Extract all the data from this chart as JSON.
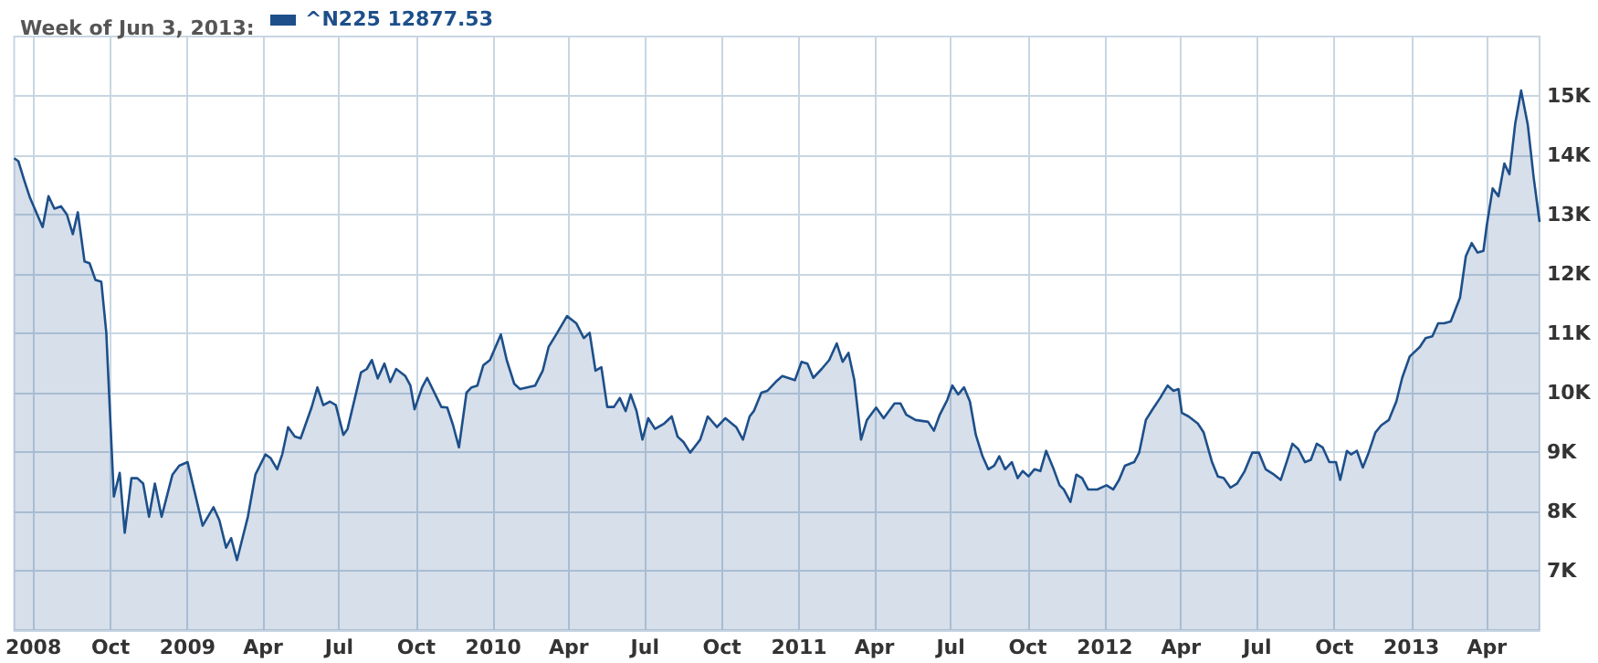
{
  "chart_data": {
    "type": "area",
    "title": "Week of Jun 3, 2013:",
    "legend": "top left",
    "grid": true,
    "marker": "none",
    "line_style": "solid",
    "xlim": [
      "2008-06-08",
      "2013-06-03"
    ],
    "xticks": [
      {
        "value": "2008-07-01",
        "label": "2008"
      },
      {
        "value": "2008-10-01",
        "label": "Oct"
      },
      {
        "value": "2009-01-01",
        "label": "2009"
      },
      {
        "value": "2009-04-01",
        "label": "Apr"
      },
      {
        "value": "2009-07-01",
        "label": "Jul"
      },
      {
        "value": "2009-10-01",
        "label": "Oct"
      },
      {
        "value": "2010-01-01",
        "label": "2010"
      },
      {
        "value": "2010-04-01",
        "label": "Apr"
      },
      {
        "value": "2010-07-01",
        "label": "Jul"
      },
      {
        "value": "2010-10-01",
        "label": "Oct"
      },
      {
        "value": "2011-01-01",
        "label": "2011"
      },
      {
        "value": "2011-04-01",
        "label": "Apr"
      },
      {
        "value": "2011-07-01",
        "label": "Jul"
      },
      {
        "value": "2011-10-01",
        "label": "Oct"
      },
      {
        "value": "2012-01-01",
        "label": "2012"
      },
      {
        "value": "2012-04-01",
        "label": "Apr"
      },
      {
        "value": "2012-07-01",
        "label": "Jul"
      },
      {
        "value": "2012-10-01",
        "label": "Oct"
      },
      {
        "value": "2013-01-01",
        "label": "2013"
      },
      {
        "value": "2013-04-01",
        "label": "Apr"
      }
    ],
    "ylim": [
      6000,
      16000
    ],
    "yticks": [
      {
        "value": 7000,
        "label": "7K"
      },
      {
        "value": 8000,
        "label": "8K"
      },
      {
        "value": 9000,
        "label": "9K"
      },
      {
        "value": 10000,
        "label": "10K"
      },
      {
        "value": 11000,
        "label": "11K"
      },
      {
        "value": 12000,
        "label": "12K"
      },
      {
        "value": 13000,
        "label": "13K"
      },
      {
        "value": 14000,
        "label": "14K"
      },
      {
        "value": 15000,
        "label": "15K"
      }
    ],
    "annotations": [
      "12877.53"
    ],
    "x": [
      "2008-06-08",
      "2008-06-13",
      "2008-06-20",
      "2008-06-27",
      "2008-07-12",
      "2008-07-19",
      "2008-07-26",
      "2008-08-03",
      "2008-08-10",
      "2008-08-17",
      "2008-08-23",
      "2008-08-31",
      "2008-09-06",
      "2008-09-13",
      "2008-09-20",
      "2008-09-26",
      "2008-10-05",
      "2008-10-12",
      "2008-10-18",
      "2008-10-26",
      "2008-11-02",
      "2008-11-09",
      "2008-11-16",
      "2008-11-23",
      "2008-12-01",
      "2008-12-14",
      "2008-12-22",
      "2009-01-01",
      "2009-01-19",
      "2009-02-01",
      "2009-02-08",
      "2009-02-16",
      "2009-02-22",
      "2009-03-01",
      "2009-03-14",
      "2009-03-23",
      "2009-04-04",
      "2009-04-10",
      "2009-04-18",
      "2009-04-24",
      "2009-05-01",
      "2009-05-09",
      "2009-05-16",
      "2009-05-29",
      "2009-06-05",
      "2009-06-12",
      "2009-06-20",
      "2009-06-27",
      "2009-07-06",
      "2009-07-11",
      "2009-07-27",
      "2009-08-03",
      "2009-08-09",
      "2009-08-16",
      "2009-08-24",
      "2009-08-31",
      "2009-09-07",
      "2009-09-18",
      "2009-09-24",
      "2009-09-29",
      "2009-10-08",
      "2009-10-14",
      "2009-10-31",
      "2009-11-07",
      "2009-11-14",
      "2009-11-21",
      "2009-11-30",
      "2009-12-06",
      "2009-12-13",
      "2009-12-20",
      "2009-12-28",
      "2010-01-10",
      "2010-01-17",
      "2010-01-26",
      "2010-02-02",
      "2010-02-20",
      "2010-03-01",
      "2010-03-08",
      "2010-03-17",
      "2010-03-30",
      "2010-04-10",
      "2010-04-19",
      "2010-04-26",
      "2010-05-03",
      "2010-05-10",
      "2010-05-17",
      "2010-05-25",
      "2010-06-01",
      "2010-06-08",
      "2010-06-14",
      "2010-06-21",
      "2010-06-28",
      "2010-07-05",
      "2010-07-13",
      "2010-07-24",
      "2010-08-02",
      "2010-08-09",
      "2010-08-16",
      "2010-08-24",
      "2010-09-05",
      "2010-09-14",
      "2010-09-25",
      "2010-10-05",
      "2010-10-18",
      "2010-10-26",
      "2010-11-03",
      "2010-11-08",
      "2010-11-17",
      "2010-11-24",
      "2010-12-04",
      "2010-12-12",
      "2010-12-27",
      "2011-01-04",
      "2011-01-11",
      "2011-01-18",
      "2011-01-28",
      "2011-02-06",
      "2011-02-15",
      "2011-02-22",
      "2011-03-01",
      "2011-03-08",
      "2011-03-16",
      "2011-03-23",
      "2011-04-03",
      "2011-04-12",
      "2011-04-25",
      "2011-05-02",
      "2011-05-09",
      "2011-05-20",
      "2011-06-04",
      "2011-06-11",
      "2011-06-18",
      "2011-06-27",
      "2011-07-03",
      "2011-07-10",
      "2011-07-17",
      "2011-07-24",
      "2011-07-31",
      "2011-08-08",
      "2011-08-15",
      "2011-08-22",
      "2011-08-28",
      "2011-09-04",
      "2011-09-12",
      "2011-09-19",
      "2011-09-25",
      "2011-10-02",
      "2011-10-09",
      "2011-10-16",
      "2011-10-23",
      "2011-11-01",
      "2011-11-08",
      "2011-11-13",
      "2011-11-21",
      "2011-11-28",
      "2011-12-05",
      "2011-12-12",
      "2011-12-23",
      "2012-01-03",
      "2012-01-11",
      "2012-01-18",
      "2012-01-25",
      "2012-02-05",
      "2012-02-11",
      "2012-02-19",
      "2012-02-27",
      "2012-03-07",
      "2012-03-16",
      "2012-03-23",
      "2012-03-29",
      "2012-04-02",
      "2012-04-10",
      "2012-04-21",
      "2012-04-28",
      "2012-05-08",
      "2012-05-15",
      "2012-05-22",
      "2012-05-30",
      "2012-06-07",
      "2012-06-16",
      "2012-06-25",
      "2012-07-03",
      "2012-07-11",
      "2012-07-21",
      "2012-07-29",
      "2012-08-05",
      "2012-08-12",
      "2012-08-19",
      "2012-08-27",
      "2012-09-03",
      "2012-09-10",
      "2012-09-17",
      "2012-09-25",
      "2012-10-03",
      "2012-10-08",
      "2012-10-16",
      "2012-10-21",
      "2012-10-28",
      "2012-11-04",
      "2012-11-11",
      "2012-11-19",
      "2012-11-26",
      "2012-12-05",
      "2012-12-14",
      "2012-12-21",
      "2012-12-30",
      "2013-01-11",
      "2013-01-18",
      "2013-01-26",
      "2013-02-02",
      "2013-02-09",
      "2013-02-17",
      "2013-02-28",
      "2013-03-07",
      "2013-03-14",
      "2013-03-21",
      "2013-03-28",
      "2013-04-01",
      "2013-04-08",
      "2013-04-15",
      "2013-04-22",
      "2013-04-28",
      "2013-05-05",
      "2013-05-12",
      "2013-05-20",
      "2013-05-27",
      "2013-06-03"
    ],
    "series": [
      {
        "name": "^N225",
        "color": "#1d4f8a",
        "values": [
          13950,
          13900,
          13580,
          13280,
          12790,
          13310,
          13100,
          13140,
          13000,
          12670,
          13040,
          12210,
          12180,
          11900,
          11870,
          11010,
          8250,
          8650,
          7640,
          8560,
          8560,
          8470,
          7910,
          8470,
          7910,
          8620,
          8770,
          8830,
          7760,
          8070,
          7850,
          7390,
          7550,
          7180,
          7910,
          8620,
          8960,
          8900,
          8710,
          8960,
          9420,
          9260,
          9230,
          9750,
          10090,
          9790,
          9850,
          9790,
          9290,
          9390,
          10340,
          10400,
          10550,
          10240,
          10490,
          10180,
          10400,
          10280,
          10120,
          9720,
          10090,
          10250,
          9760,
          9750,
          9450,
          9080,
          10000,
          10090,
          10120,
          10460,
          10550,
          10980,
          10550,
          10150,
          10060,
          10120,
          10370,
          10770,
          10980,
          11290,
          11170,
          10920,
          11010,
          10370,
          10430,
          9760,
          9760,
          9910,
          9690,
          9970,
          9690,
          9210,
          9570,
          9390,
          9480,
          9600,
          9260,
          9170,
          8990,
          9210,
          9600,
          9420,
          9570,
          9420,
          9210,
          9600,
          9690,
          10000,
          10030,
          10180,
          10280,
          10210,
          10520,
          10490,
          10250,
          10400,
          10550,
          10830,
          10520,
          10670,
          10210,
          9210,
          9540,
          9750,
          9570,
          9820,
          9820,
          9630,
          9540,
          9510,
          9360,
          9630,
          9880,
          10120,
          9970,
          10090,
          9850,
          9290,
          8930,
          8710,
          8770,
          8930,
          8710,
          8830,
          8560,
          8680,
          8590,
          8710,
          8680,
          9020,
          8710,
          8440,
          8370,
          8160,
          8620,
          8560,
          8370,
          8370,
          8440,
          8370,
          8530,
          8770,
          8830,
          8990,
          9540,
          9720,
          9910,
          10120,
          10030,
          10060,
          9660,
          9600,
          9480,
          9330,
          8830,
          8590,
          8560,
          8400,
          8470,
          8680,
          8990,
          8990,
          8710,
          8620,
          8530,
          8830,
          9140,
          9050,
          8830,
          8870,
          9140,
          9080,
          8830,
          8830,
          8530,
          9020,
          8960,
          9020,
          8740,
          8990,
          9330,
          9450,
          9540,
          9850,
          10250,
          10610,
          10770,
          10920,
          10950,
          11170,
          11170,
          11200,
          11600,
          12300,
          12520,
          12360,
          12390,
          12820,
          13440,
          13310,
          13860,
          13680,
          14540,
          15090,
          14510,
          13620,
          12877.53
        ]
      }
    ]
  }
}
